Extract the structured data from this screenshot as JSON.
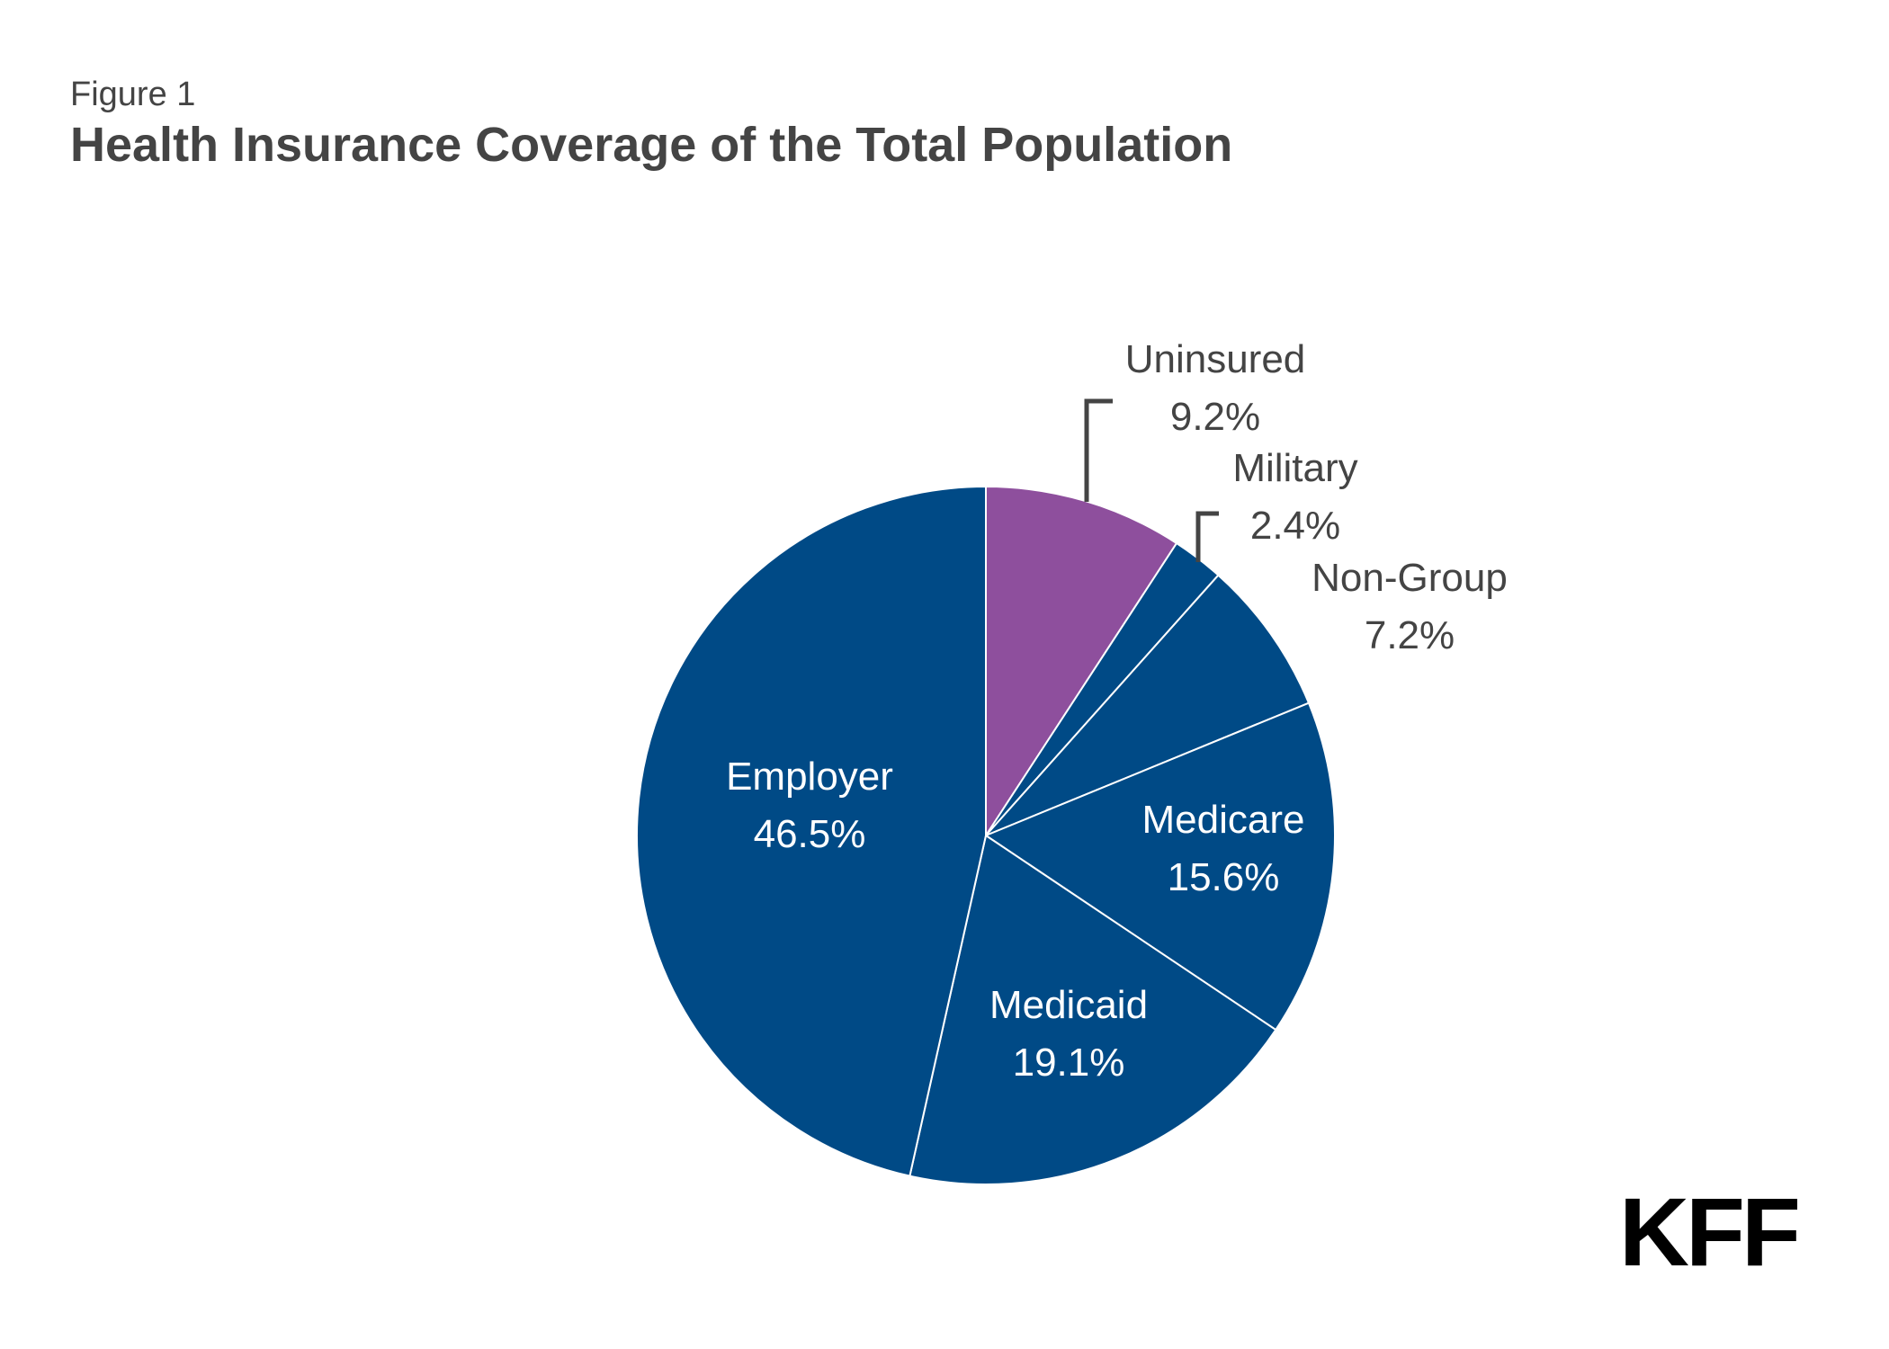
{
  "figure_label": "Figure 1",
  "chart_data": {
    "type": "pie",
    "title": "Health Insurance Coverage of the Total Population",
    "slices": [
      {
        "label": "Uninsured",
        "value": 9.2,
        "value_label": "9.2%",
        "color": "#8E4F9D"
      },
      {
        "label": "Military",
        "value": 2.4,
        "value_label": "2.4%",
        "color": "#004A86"
      },
      {
        "label": "Non-Group",
        "value": 7.2,
        "value_label": "7.2%",
        "color": "#004A86"
      },
      {
        "label": "Medicare",
        "value": 15.6,
        "value_label": "15.6%",
        "color": "#004A86"
      },
      {
        "label": "Medicaid",
        "value": 19.1,
        "value_label": "19.1%",
        "color": "#004A86"
      },
      {
        "label": "Employer",
        "value": 46.5,
        "value_label": "46.5%",
        "color": "#004A86"
      }
    ]
  },
  "logo_text": "KFF"
}
